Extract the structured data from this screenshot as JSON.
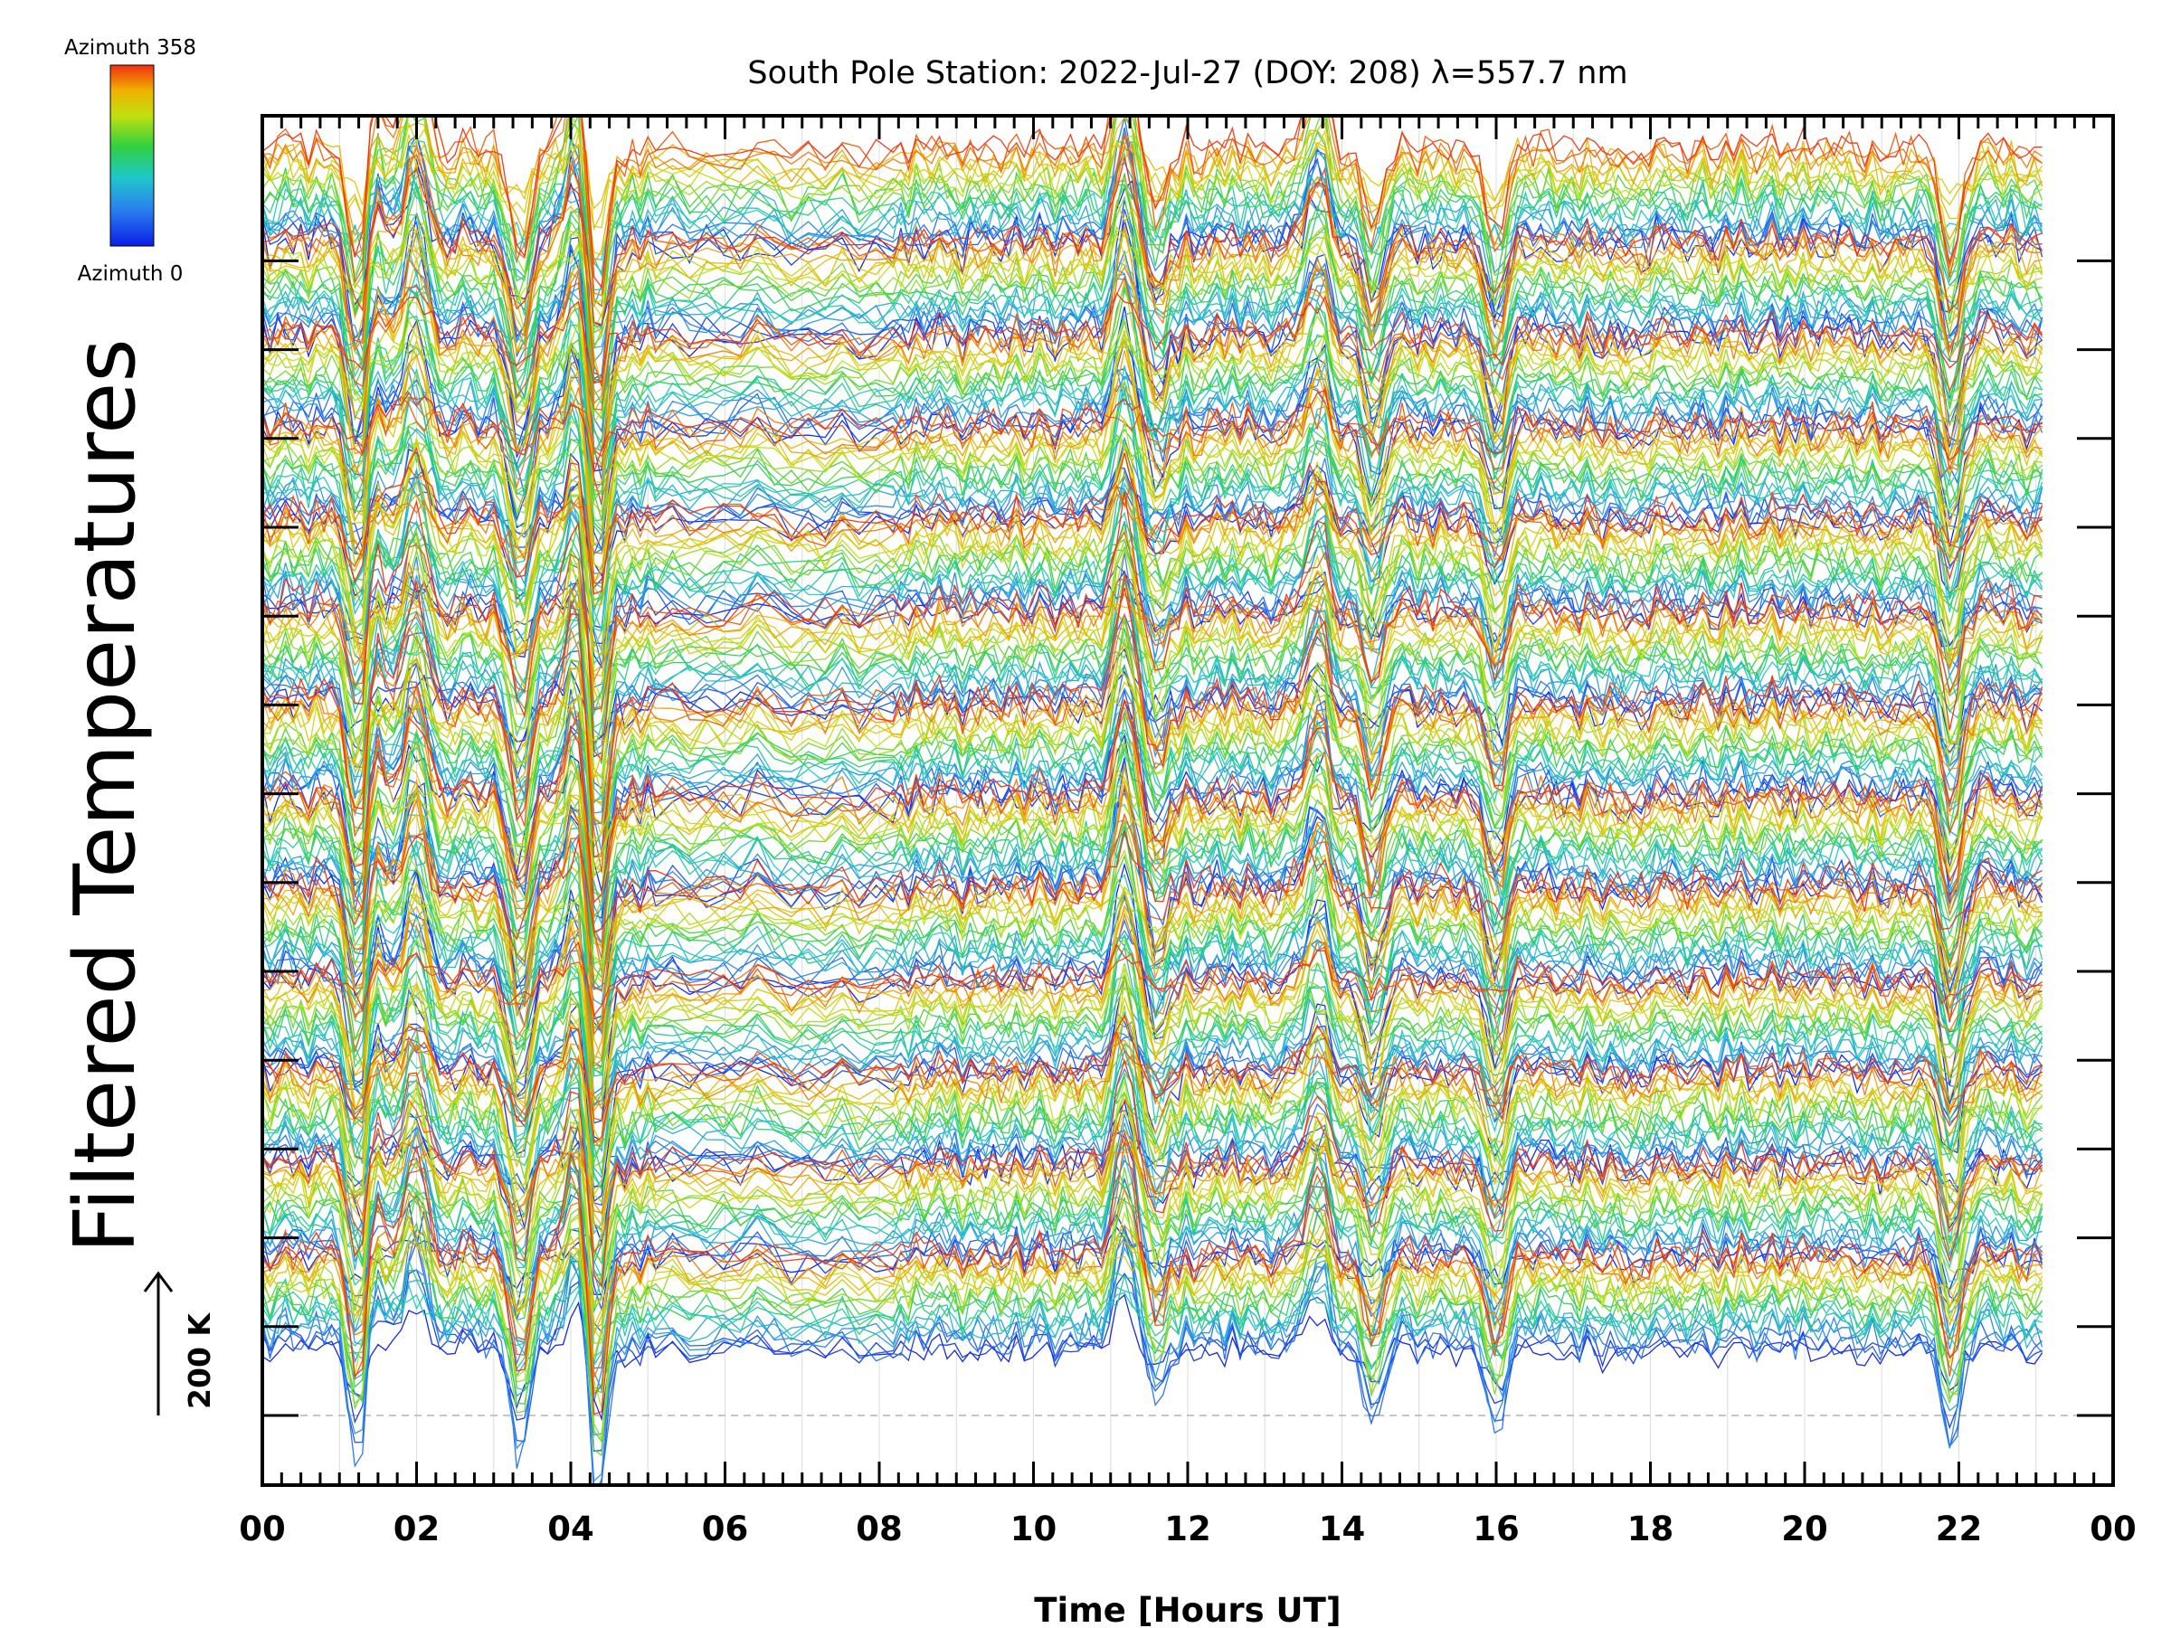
{
  "chart_data": {
    "type": "line",
    "title": "South Pole Station: 2022-Jul-27 (DOY: 208) λ=557.7 nm",
    "xlabel": "Time [Hours UT]",
    "ylabel": "Filtered Temperatures",
    "xlim": [
      0,
      24
    ],
    "x_tick_labels": [
      "00",
      "02",
      "04",
      "06",
      "08",
      "10",
      "12",
      "14",
      "16",
      "18",
      "20",
      "22",
      "00"
    ],
    "y_tick_count": 14,
    "colorbar": {
      "top_label": "Azimuth  358",
      "bottom_label": "Azimuth  0",
      "colormap": [
        "#0a1ee6",
        "#2a80ee",
        "#1ec8c8",
        "#30d040",
        "#c0e010",
        "#f0b000",
        "#f03010"
      ]
    },
    "scale_bar": {
      "label": "200 K"
    },
    "grid": true,
    "time_range_hours": [
      0,
      23.1
    ],
    "series_bands": 13,
    "lines_per_band": 22,
    "events": [
      {
        "t": 1.25,
        "amp": -1.6
      },
      {
        "t": 1.45,
        "amp": 0.9
      },
      {
        "t": 2.0,
        "amp": 1.3
      },
      {
        "t": 3.35,
        "amp": -1.3
      },
      {
        "t": 4.05,
        "amp": 1.1
      },
      {
        "t": 4.35,
        "amp": -1.9
      },
      {
        "t": 11.2,
        "amp": 1.3
      },
      {
        "t": 11.6,
        "amp": -0.8
      },
      {
        "t": 13.7,
        "amp": 0.9
      },
      {
        "t": 14.4,
        "amp": -1.1
      },
      {
        "t": 16.0,
        "amp": -1.0
      },
      {
        "t": 21.9,
        "amp": -1.3
      }
    ]
  }
}
